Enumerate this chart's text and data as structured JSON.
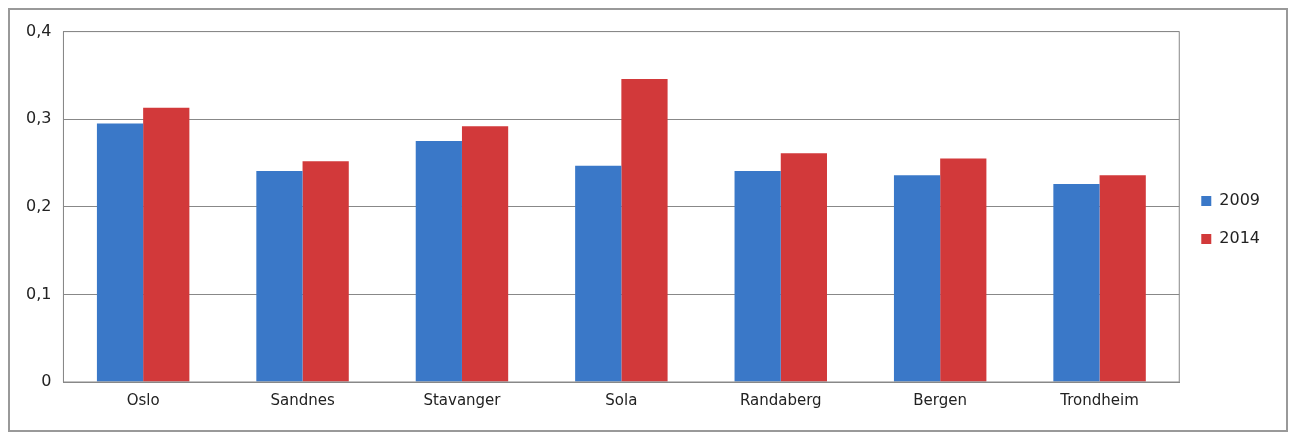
{
  "chart_data": {
    "type": "bar",
    "categories": [
      "Oslo",
      "Sandnes",
      "Stavanger",
      "Sola",
      "Randaberg",
      "Bergen",
      "Trondheim"
    ],
    "series": [
      {
        "name": "2009",
        "color": "#3a78c8",
        "values": [
          0.295,
          0.241,
          0.275,
          0.247,
          0.241,
          0.236,
          0.226
        ]
      },
      {
        "name": "2014",
        "color": "#d2393a",
        "values": [
          0.313,
          0.252,
          0.292,
          0.346,
          0.261,
          0.255,
          0.236
        ]
      }
    ],
    "ylim": [
      0,
      0.4
    ],
    "yticks": [
      0,
      {
        "value": 0.1,
        "label": "0,1"
      },
      {
        "value": 0.2,
        "label": "0,2"
      },
      {
        "value": 0.3,
        "label": "0,3"
      },
      {
        "value": 0.4,
        "label": "0,4"
      }
    ],
    "grid": "y",
    "legend": "right"
  }
}
